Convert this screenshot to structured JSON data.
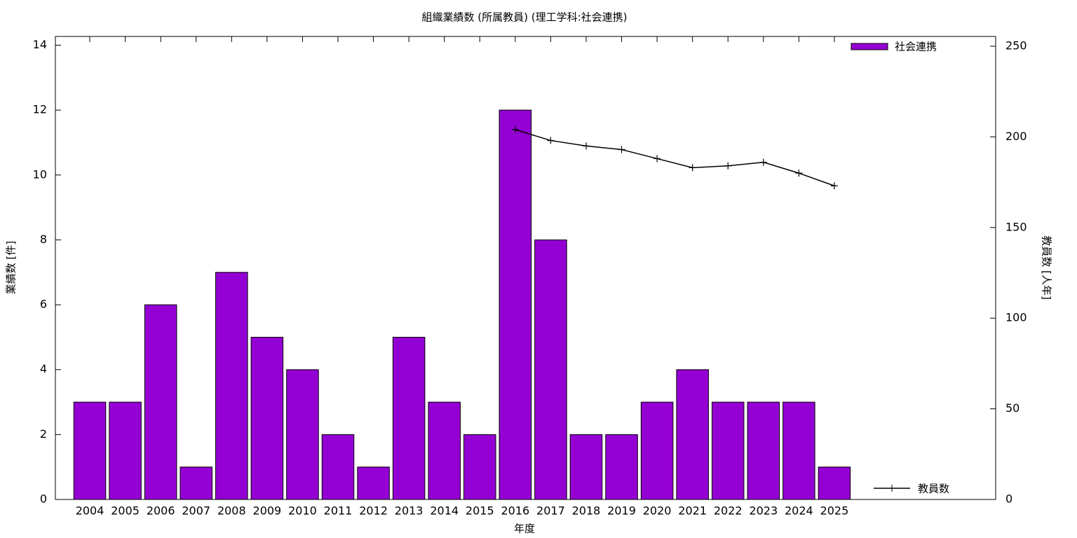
{
  "chart_data": {
    "type": "bar",
    "title": "組織業績数 (所属教員) (理工学科:社会連携)",
    "xlabel": "年度",
    "ylabel": "業績数 [件]",
    "y2label": "教員数 [人年]",
    "x": [
      2004,
      2005,
      2006,
      2007,
      2008,
      2009,
      2010,
      2011,
      2012,
      2013,
      2014,
      2015,
      2016,
      2017,
      2018,
      2019,
      2020,
      2021,
      2022,
      2023,
      2024,
      2025
    ],
    "xlim": [
      2003.03,
      2029.55
    ],
    "xticks": [
      2004,
      2005,
      2006,
      2007,
      2008,
      2009,
      2010,
      2011,
      2012,
      2013,
      2014,
      2015,
      2016,
      2017,
      2018,
      2019,
      2020,
      2021,
      2022,
      2023,
      2024,
      2025
    ],
    "series": [
      {
        "name": "社会連携",
        "type": "bar",
        "color": "#9400d3",
        "values": [
          3,
          3,
          6,
          1,
          7,
          5,
          4,
          2,
          1,
          5,
          3,
          2,
          12,
          8,
          2,
          2,
          3,
          4,
          3,
          3,
          3,
          1
        ]
      },
      {
        "name": "教員数",
        "type": "line",
        "color": "#000000",
        "axis": "y2",
        "values": [
          null,
          null,
          null,
          null,
          null,
          null,
          null,
          null,
          null,
          null,
          null,
          null,
          204,
          198,
          195,
          193,
          188,
          183,
          184,
          186,
          180,
          173
        ]
      }
    ],
    "ylim": [
      0,
      14.27
    ],
    "yticks": [
      0,
      2,
      4,
      6,
      8,
      10,
      12,
      14
    ],
    "y2lim": [
      0,
      255.4
    ],
    "y2ticks": [
      0,
      50,
      100,
      150,
      200,
      250
    ],
    "grid": false
  }
}
